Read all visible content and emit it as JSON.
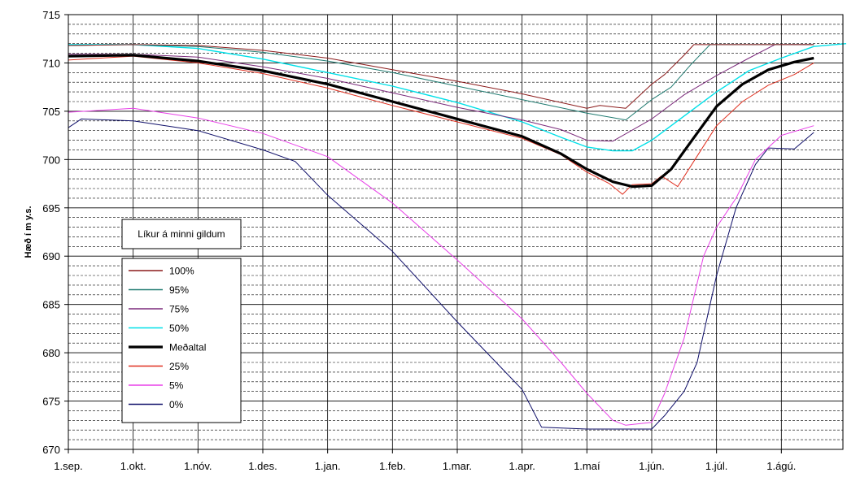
{
  "chart_data": {
    "type": "line",
    "ylabel": "Hæð í m y.s.",
    "ylim": [
      670,
      715
    ],
    "yticks": [
      "670",
      "675",
      "680",
      "685",
      "690",
      "695",
      "700",
      "705",
      "710",
      "715"
    ],
    "x_categories": [
      "1.sep.",
      "1.okt.",
      "1.nóv.",
      "1.des.",
      "1.jan.",
      "1.feb.",
      "1.mar.",
      "1.apr.",
      "1.maí",
      "1.jún.",
      "1.júl.",
      "1.ágú."
    ],
    "grid": {
      "major_y": true,
      "minor_y": true,
      "vertical_at_months": true
    },
    "legend": {
      "title": "Líkur á minni gildum",
      "placement": "left"
    },
    "series": [
      {
        "name": "100%",
        "color": "#8b1a1a",
        "width": 1,
        "points": [
          [
            0,
            711.8
          ],
          [
            1,
            711.9
          ],
          [
            2,
            711.8
          ],
          [
            3,
            711.3
          ],
          [
            4,
            710.5
          ],
          [
            5,
            709.3
          ],
          [
            6,
            708.1
          ],
          [
            7,
            706.8
          ],
          [
            8,
            705.3
          ],
          [
            8.2,
            705.6
          ],
          [
            8.6,
            705.3
          ],
          [
            9,
            707.8
          ],
          [
            9.2,
            708.8
          ],
          [
            9.5,
            710.8
          ],
          [
            9.65,
            711.9
          ],
          [
            11.5,
            711.9
          ]
        ]
      },
      {
        "name": "95%",
        "color": "#1f7a70",
        "width": 1,
        "points": [
          [
            0,
            711.8
          ],
          [
            1,
            711.9
          ],
          [
            2,
            711.7
          ],
          [
            3,
            711.1
          ],
          [
            4,
            710.2
          ],
          [
            5,
            709.0
          ],
          [
            6,
            707.6
          ],
          [
            7,
            706.2
          ],
          [
            8,
            704.8
          ],
          [
            8.6,
            704.1
          ],
          [
            9,
            706.2
          ],
          [
            9.3,
            707.5
          ],
          [
            9.6,
            709.8
          ],
          [
            9.9,
            711.9
          ],
          [
            11.5,
            711.9
          ]
        ]
      },
      {
        "name": "75%",
        "color": "#7b2a7b",
        "width": 1,
        "points": [
          [
            0,
            710.9
          ],
          [
            1,
            710.9
          ],
          [
            2,
            710.6
          ],
          [
            3,
            709.6
          ],
          [
            4,
            708.4
          ],
          [
            5,
            706.9
          ],
          [
            6,
            705.4
          ],
          [
            7,
            704.1
          ],
          [
            7.6,
            703.1
          ],
          [
            8,
            702.0
          ],
          [
            8.4,
            701.9
          ],
          [
            9,
            704.2
          ],
          [
            9.5,
            706.7
          ],
          [
            10,
            708.7
          ],
          [
            10.5,
            710.5
          ],
          [
            10.9,
            711.9
          ],
          [
            11.5,
            711.9
          ]
        ]
      },
      {
        "name": "50%",
        "color": "#00e0e8",
        "width": 1.4,
        "points": [
          [
            0,
            711.9
          ],
          [
            1,
            711.9
          ],
          [
            2,
            711.5
          ],
          [
            3,
            710.4
          ],
          [
            4,
            709.0
          ],
          [
            5,
            707.6
          ],
          [
            6,
            705.9
          ],
          [
            7,
            703.9
          ],
          [
            7.6,
            702.3
          ],
          [
            8,
            701.3
          ],
          [
            8.4,
            700.9
          ],
          [
            8.7,
            700.9
          ],
          [
            9,
            702.0
          ],
          [
            9.5,
            704.5
          ],
          [
            10,
            707.0
          ],
          [
            10.5,
            709.2
          ],
          [
            11,
            710.5
          ],
          [
            11.5,
            711.7
          ],
          [
            12,
            712.0
          ]
        ]
      },
      {
        "name": "Meðaltal",
        "color": "#000000",
        "width": 3.2,
        "points": [
          [
            0,
            710.7
          ],
          [
            1,
            710.8
          ],
          [
            2,
            710.2
          ],
          [
            3,
            709.2
          ],
          [
            4,
            707.8
          ],
          [
            5,
            706.0
          ],
          [
            6,
            704.2
          ],
          [
            7,
            702.4
          ],
          [
            7.6,
            700.6
          ],
          [
            8,
            699.0
          ],
          [
            8.4,
            697.7
          ],
          [
            8.7,
            697.2
          ],
          [
            9,
            697.3
          ],
          [
            9.3,
            699.0
          ],
          [
            9.6,
            701.8
          ],
          [
            10,
            705.5
          ],
          [
            10.4,
            707.8
          ],
          [
            10.8,
            709.3
          ],
          [
            11.2,
            710.1
          ],
          [
            11.5,
            710.5
          ]
        ]
      },
      {
        "name": "25%",
        "color": "#e03020",
        "width": 1,
        "points": [
          [
            0,
            710.3
          ],
          [
            1,
            710.7
          ],
          [
            2,
            710.0
          ],
          [
            3,
            708.9
          ],
          [
            4,
            707.4
          ],
          [
            5,
            705.6
          ],
          [
            6,
            703.9
          ],
          [
            7,
            702.2
          ],
          [
            7.6,
            700.5
          ],
          [
            8,
            698.7
          ],
          [
            8.35,
            697.5
          ],
          [
            8.55,
            696.4
          ],
          [
            8.7,
            697.4
          ],
          [
            9,
            697.5
          ],
          [
            9.15,
            698.3
          ],
          [
            9.4,
            697.2
          ],
          [
            9.6,
            699.3
          ],
          [
            10,
            703.5
          ],
          [
            10.4,
            706.0
          ],
          [
            10.8,
            707.7
          ],
          [
            11.2,
            708.8
          ],
          [
            11.5,
            710.0
          ]
        ]
      },
      {
        "name": "5%",
        "color": "#e840e8",
        "width": 1,
        "points": [
          [
            0,
            704.9
          ],
          [
            1,
            705.3
          ],
          [
            2,
            704.3
          ],
          [
            3,
            702.7
          ],
          [
            4,
            700.3
          ],
          [
            5,
            695.5
          ],
          [
            6,
            689.6
          ],
          [
            7,
            683.5
          ],
          [
            7.6,
            679.0
          ],
          [
            8,
            675.8
          ],
          [
            8.4,
            673.0
          ],
          [
            8.6,
            672.5
          ],
          [
            9,
            672.8
          ],
          [
            9.2,
            675.8
          ],
          [
            9.5,
            681.5
          ],
          [
            9.8,
            690.0
          ],
          [
            10,
            693.0
          ],
          [
            10.3,
            696.0
          ],
          [
            10.6,
            700.0
          ],
          [
            11,
            702.5
          ],
          [
            11.5,
            703.5
          ]
        ]
      },
      {
        "name": "0%",
        "color": "#10106a",
        "width": 1,
        "points": [
          [
            0,
            703.3
          ],
          [
            0.2,
            704.2
          ],
          [
            1,
            704.0
          ],
          [
            2,
            703.0
          ],
          [
            3,
            701.0
          ],
          [
            3.5,
            699.8
          ],
          [
            4,
            696.3
          ],
          [
            5,
            690.5
          ],
          [
            6,
            683.2
          ],
          [
            6.6,
            679.0
          ],
          [
            7,
            676.2
          ],
          [
            7.3,
            672.3
          ],
          [
            8,
            672.1
          ],
          [
            9,
            672.1
          ],
          [
            9.2,
            673.5
          ],
          [
            9.5,
            676.0
          ],
          [
            9.7,
            679.0
          ],
          [
            10,
            688.0
          ],
          [
            10.3,
            695.0
          ],
          [
            10.6,
            699.5
          ],
          [
            10.8,
            701.2
          ],
          [
            11.2,
            701.1
          ],
          [
            11.5,
            702.8
          ]
        ]
      }
    ]
  }
}
